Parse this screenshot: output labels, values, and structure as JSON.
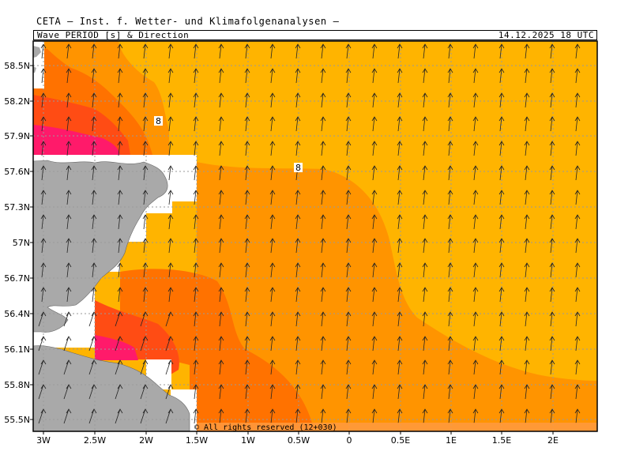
{
  "header": {
    "institute": "CETA — Inst. f. Wetter- und Klimafolgenanalysen —",
    "field": "Wave_PERIOD_[s]_&_Direction",
    "valid_time": "14.12.2025 18 UTC"
  },
  "map": {
    "lon_labels": [
      "3W",
      "2.5W",
      "2W",
      "1.5W",
      "1W",
      "0.5W",
      "0",
      "0.5E",
      "1E",
      "1.5E",
      "2E"
    ],
    "lat_labels": [
      "58.5N",
      "58.2N",
      "57.9N",
      "57.6N",
      "57.3N",
      "57N",
      "56.7N",
      "56.4N",
      "56.1N",
      "55.8N",
      "55.5N"
    ],
    "contour_labels": [
      "8",
      "8"
    ],
    "copyright": "© All rights reserved (12+030)",
    "arrow_direction": "north",
    "colors": {
      "land": "#a9a9a9",
      "period_8_plus": "#ffb400",
      "period_7_8": "#ff9400",
      "period_6_7": "#ff7200",
      "period_5_6": "#ff4c14",
      "period_4_5": "#ff1a6a",
      "no_data": "#ffffff"
    }
  }
}
